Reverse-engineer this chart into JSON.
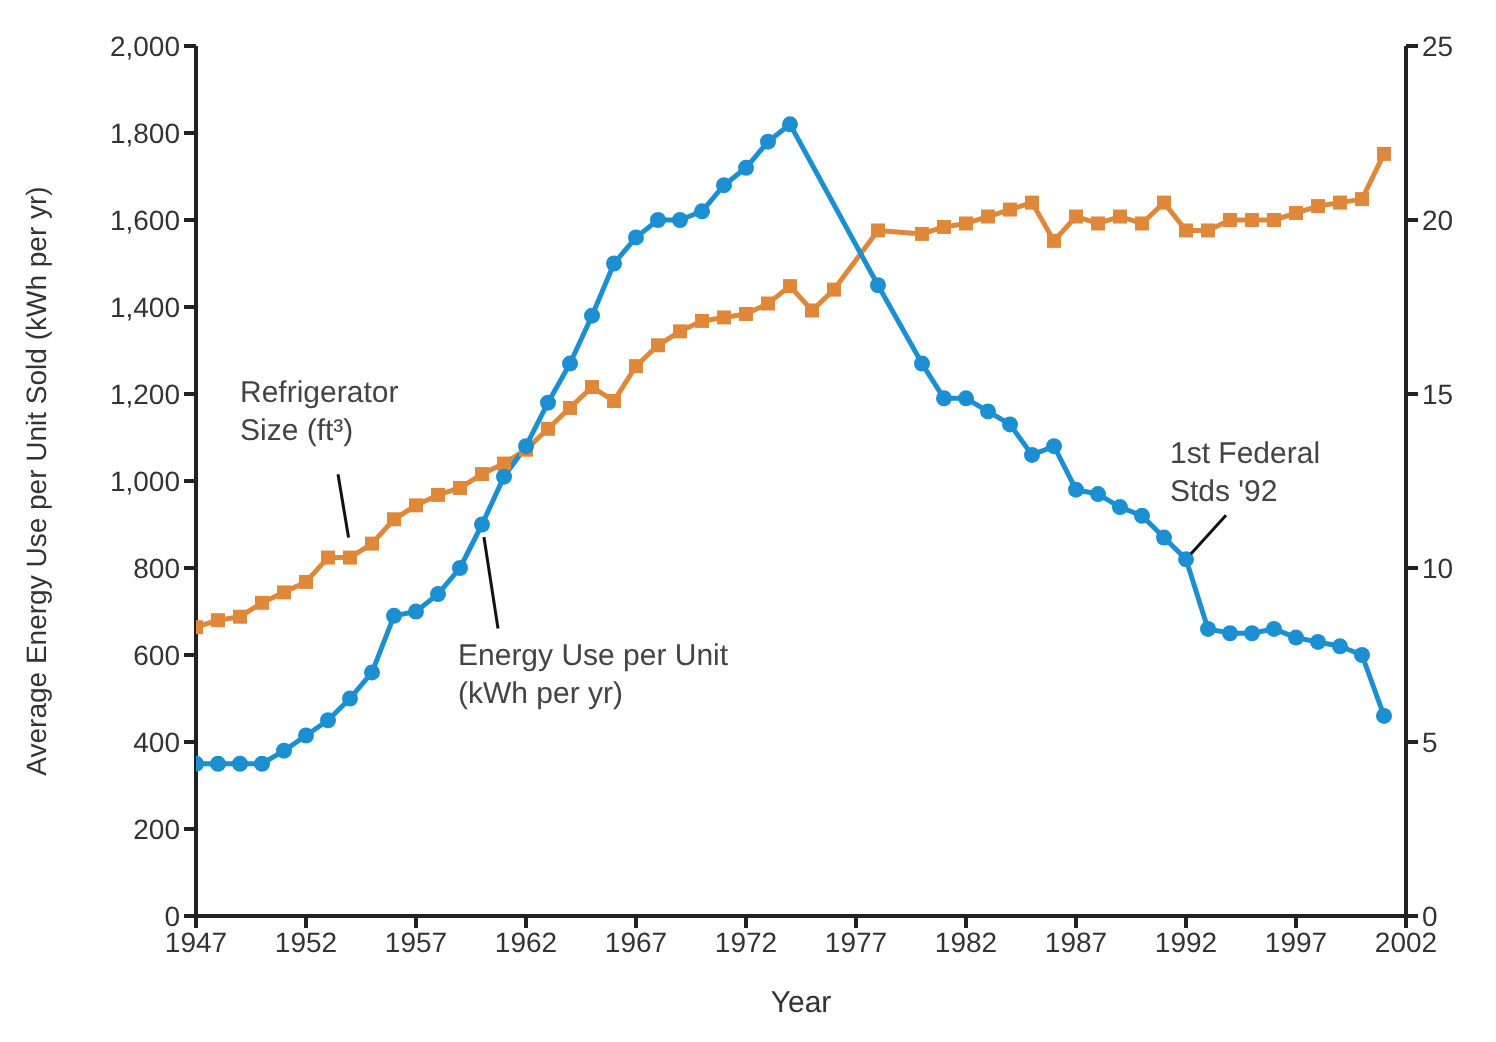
{
  "chart_data": {
    "type": "line",
    "xlabel": "Year",
    "ylabel": "Average Energy Use per Unit Sold (kWh per yr)",
    "xlim": [
      1947,
      2002
    ],
    "xticks": [
      1947,
      1952,
      1957,
      1962,
      1967,
      1972,
      1977,
      1982,
      1987,
      1992,
      1997,
      2002
    ],
    "ylim": [
      0,
      2000
    ],
    "yticks": [
      0,
      200,
      400,
      600,
      800,
      {
        "value": 1000,
        "label": "1,000"
      },
      {
        "value": 1200,
        "label": "1,200"
      },
      {
        "value": 1400,
        "label": "1,400"
      },
      {
        "value": 1600,
        "label": "1,600"
      },
      {
        "value": 1800,
        "label": "1,800"
      },
      {
        "value": 2000,
        "label": "2,000"
      }
    ],
    "y2lim": [
      0,
      25
    ],
    "y2ticks": [
      0,
      5,
      10,
      15,
      20,
      25
    ],
    "line_style": "solid",
    "series": [
      {
        "color": "#1b8fd2",
        "marker": "circle",
        "x": [
          1947,
          1948,
          1949,
          1950,
          1951,
          1952,
          1953,
          1954,
          1955,
          1956,
          1957,
          1958,
          1959,
          1960,
          1961,
          1962,
          1963,
          1964,
          1965,
          1966,
          1967,
          1968,
          1969,
          1970,
          1971,
          1972,
          1973,
          1974,
          1978,
          1980,
          1981,
          1982,
          1983,
          1984,
          1985,
          1986,
          1987,
          1988,
          1989,
          1990,
          1991,
          1992,
          1993,
          1994,
          1995,
          1996,
          1997,
          1998,
          1999,
          2000,
          2001
        ],
        "values": [
          350,
          350,
          350,
          350,
          380,
          415,
          450,
          500,
          560,
          690,
          700,
          740,
          800,
          900,
          1010,
          1080,
          1180,
          1270,
          1380,
          1500,
          1560,
          1600,
          1600,
          1620,
          1680,
          1720,
          1780,
          1820,
          1450,
          1270,
          1190,
          1190,
          1160,
          1130,
          1060,
          1080,
          980,
          970,
          940,
          920,
          870,
          820,
          660,
          650,
          650,
          660,
          640,
          630,
          620,
          600,
          460
        ]
      },
      {
        "color": "#e0883a",
        "marker": "square",
        "axis": "y2",
        "x": [
          1947,
          1948,
          1949,
          1950,
          1951,
          1952,
          1953,
          1954,
          1955,
          1956,
          1957,
          1958,
          1959,
          1960,
          1961,
          1962,
          1963,
          1964,
          1965,
          1966,
          1967,
          1968,
          1969,
          1970,
          1971,
          1972,
          1973,
          1974,
          1975,
          1976,
          1978,
          1980,
          1981,
          1982,
          1983,
          1984,
          1985,
          1986,
          1987,
          1988,
          1989,
          1990,
          1991,
          1992,
          1993,
          1994,
          1995,
          1996,
          1997,
          1998,
          1999,
          2000,
          2001
        ],
        "values": [
          8.3,
          8.5,
          8.6,
          9.0,
          9.3,
          9.6,
          10.3,
          10.3,
          10.7,
          11.4,
          11.8,
          12.1,
          12.3,
          12.7,
          13.0,
          13.4,
          14.0,
          14.6,
          15.2,
          14.8,
          15.8,
          16.4,
          16.8,
          17.1,
          17.2,
          17.3,
          17.6,
          18.1,
          17.4,
          18.0,
          19.7,
          19.6,
          19.8,
          19.9,
          20.1,
          20.3,
          20.5,
          19.4,
          20.1,
          19.9,
          20.1,
          19.9,
          20.5,
          19.7,
          19.7,
          20.0,
          20.0,
          20.0,
          20.2,
          20.4,
          20.5,
          20.6,
          21.9
        ]
      }
    ],
    "annotations": [
      {
        "text": "Refrigerator Size (ft³)",
        "x": 1954,
        "y": 850
      },
      {
        "text": "Energy Use per Unit (kWh per yr)",
        "x": 1960,
        "y": 900
      },
      {
        "text": "1st Federal Stds '92",
        "x": 1992,
        "y": 820
      }
    ]
  }
}
